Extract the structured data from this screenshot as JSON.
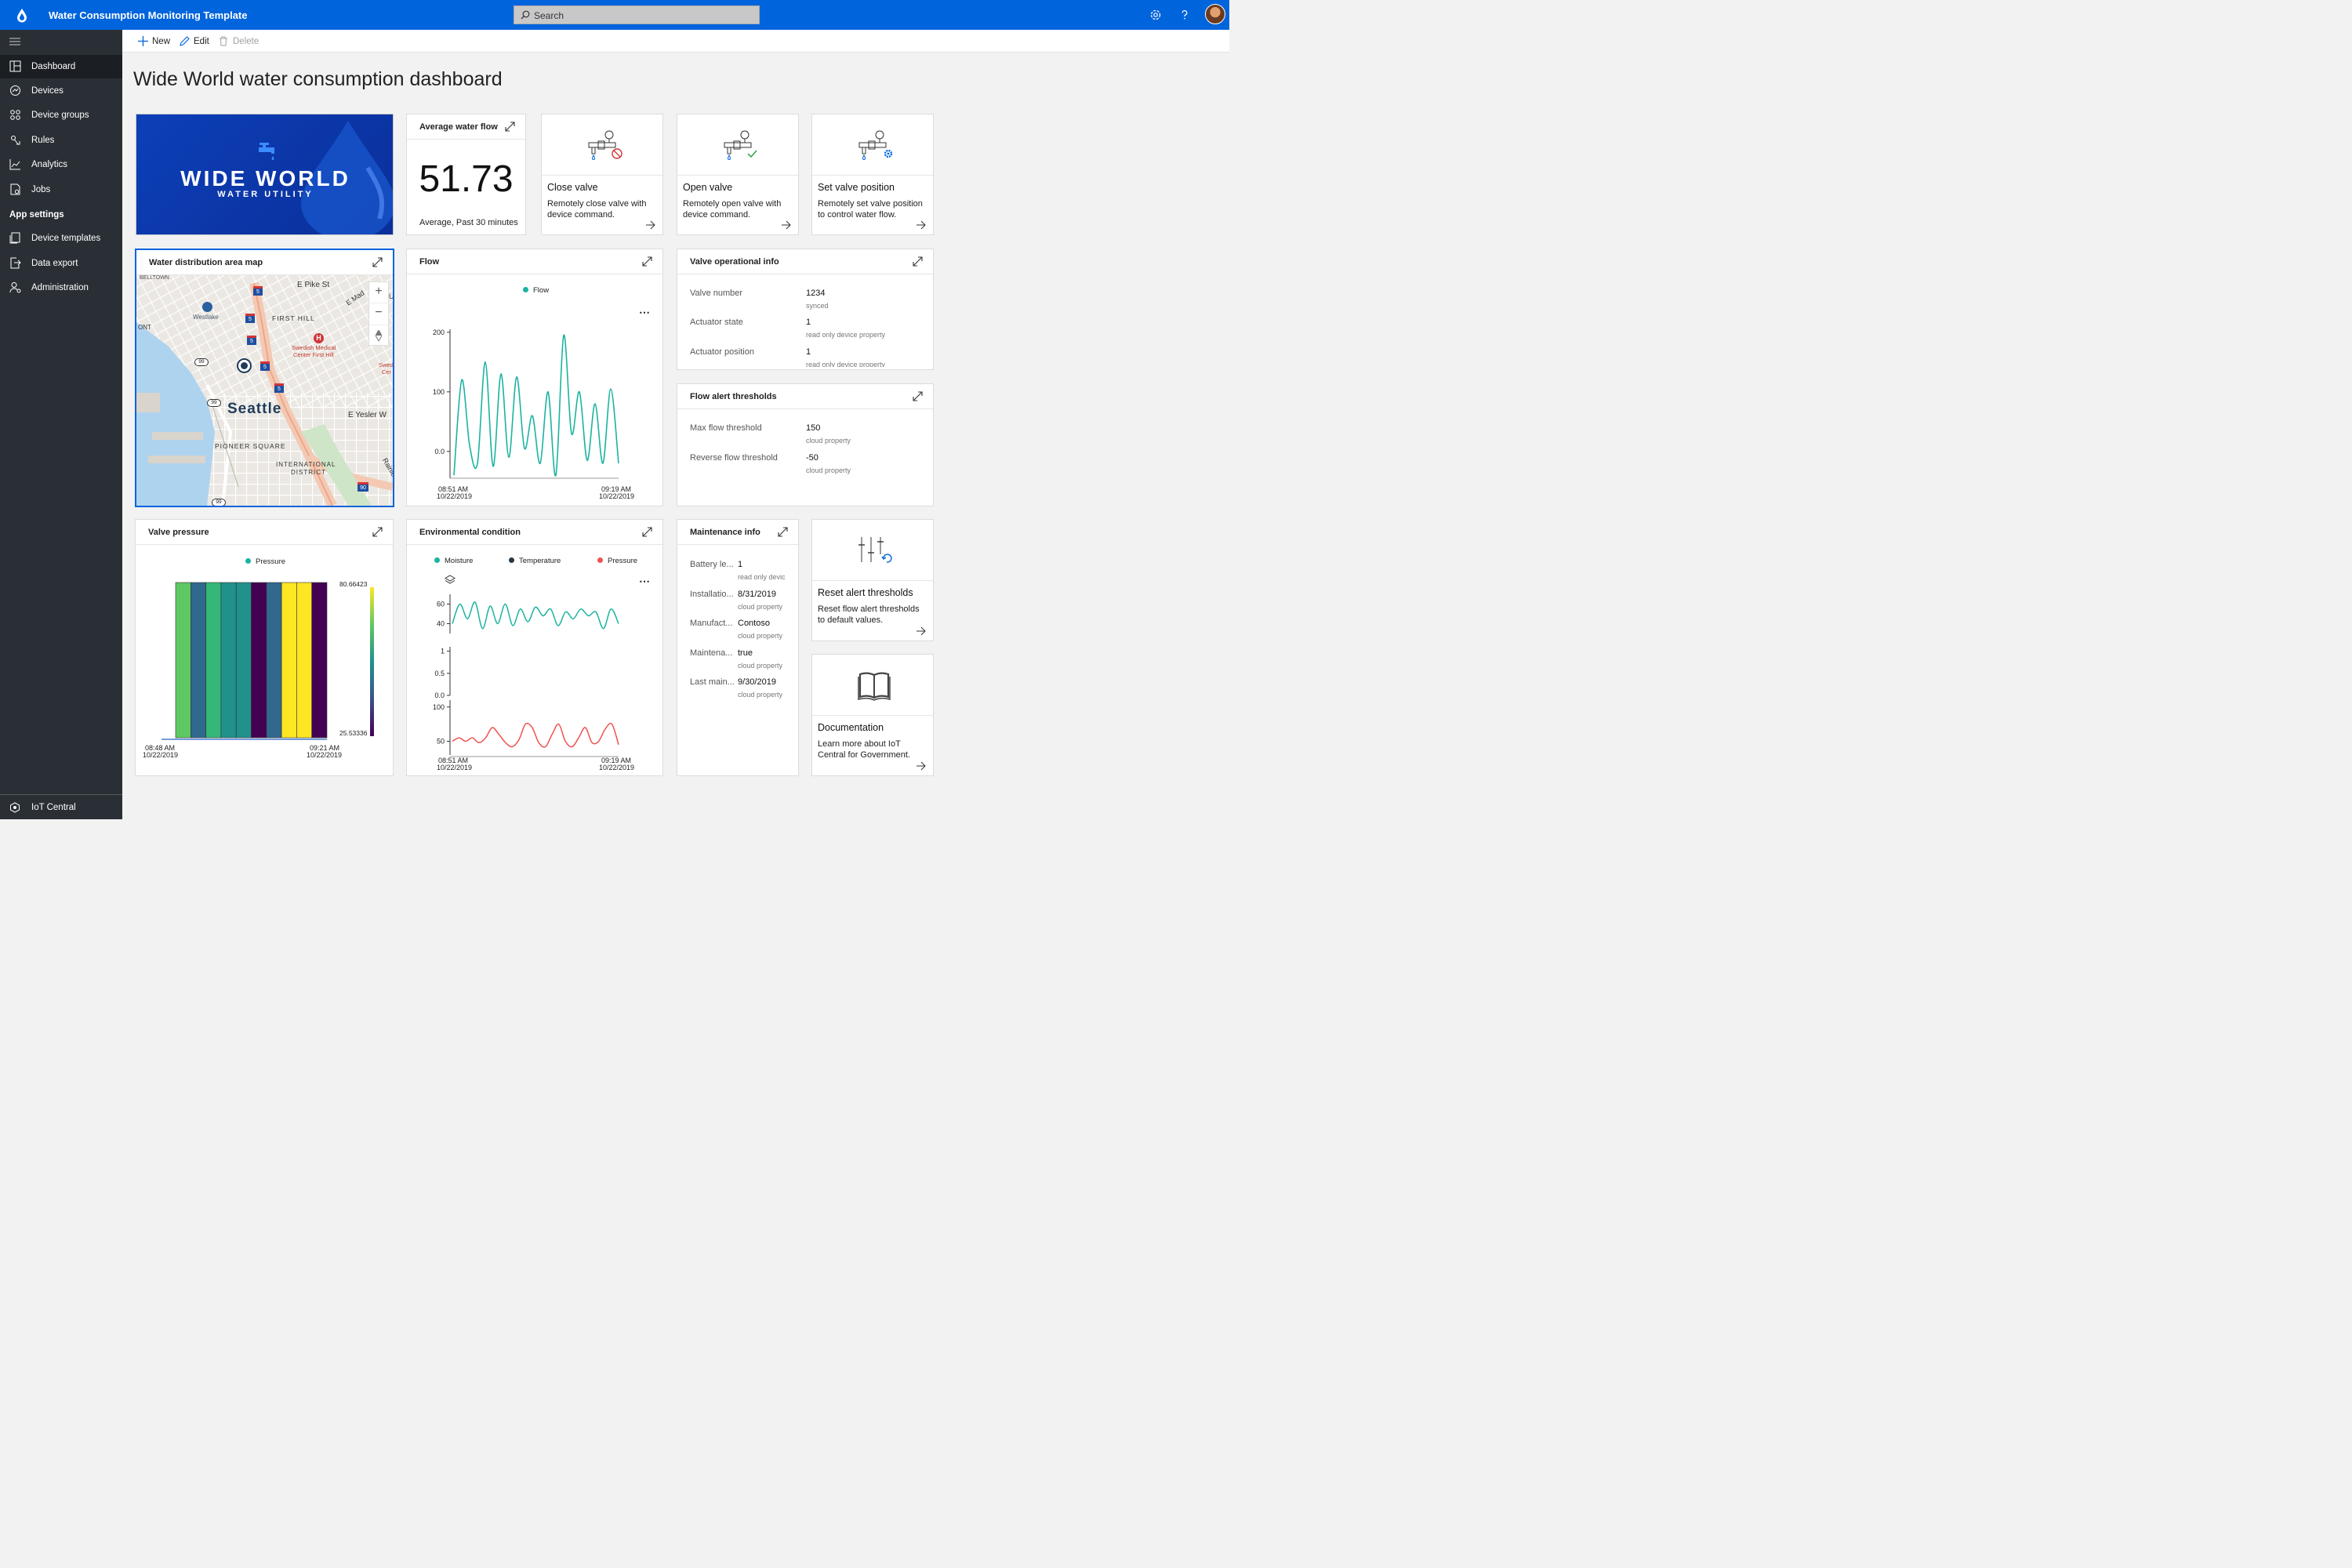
{
  "app": {
    "title": "Water Consumption Monitoring Template",
    "search_placeholder": "Search"
  },
  "sidebar": {
    "items": [
      {
        "label": "Dashboard",
        "icon": "dashboard-icon",
        "active": true
      },
      {
        "label": "Devices",
        "icon": "devices-icon"
      },
      {
        "label": "Device groups",
        "icon": "device-groups-icon"
      },
      {
        "label": "Rules",
        "icon": "rules-icon"
      },
      {
        "label": "Analytics",
        "icon": "analytics-icon"
      },
      {
        "label": "Jobs",
        "icon": "jobs-icon"
      }
    ],
    "section": "App settings",
    "settings_items": [
      {
        "label": "Device templates",
        "icon": "device-templates-icon"
      },
      {
        "label": "Data export",
        "icon": "data-export-icon"
      },
      {
        "label": "Administration",
        "icon": "administration-icon"
      }
    ],
    "footer": "IoT Central"
  },
  "toolbar": {
    "new_label": "New",
    "edit_label": "Edit",
    "delete_label": "Delete"
  },
  "page": {
    "title": "Wide World water consumption dashboard"
  },
  "brand": {
    "line1": "WIDE WORLD",
    "line2": "WATER UTILITY"
  },
  "kpi": {
    "title": "Average water flow",
    "value": "51.73",
    "subtitle": "Average, Past 30 minutes"
  },
  "actions": [
    {
      "title": "Close valve",
      "desc": "Remotely close valve with device command."
    },
    {
      "title": "Open valve",
      "desc": "Remotely open valve with device command."
    },
    {
      "title": "Set valve position",
      "desc": "Remotely set valve position to control water flow."
    },
    {
      "title": "Reset alert thresholds",
      "desc": "Reset flow alert thresholds to default values."
    },
    {
      "title": "Documentation",
      "desc": "Learn more about IoT Central for Government."
    }
  ],
  "map": {
    "title": "Water distribution area map",
    "labels": {
      "city": "Seattle",
      "pike": "E Pike St",
      "madison": "E Mad",
      "westlake": "Westlake",
      "first_hill": "FIRST HILL",
      "hospital1": "Swedish Medical",
      "hospital2": "Center First Hill",
      "swed": "Swed",
      "cer": "Cer",
      "yesler": "E Yesler W",
      "pioneer": "PIONEER SQUARE",
      "intl1": "INTERNATIONAL",
      "intl2": "DISTRICT",
      "rainier": "Rainie",
      "belltown": "BELLTOWN",
      "ont": "ONT",
      "u": "U"
    },
    "shields": {
      "i5": "5",
      "sr99": "99",
      "i90": "90"
    }
  },
  "flow_chart": {
    "title": "Flow",
    "chart_data": {
      "type": "line",
      "series": [
        {
          "name": "Flow",
          "color": "#1bb3a1",
          "values": [
            -40,
            120,
            10,
            -20,
            150,
            -25,
            130,
            -10,
            125,
            5,
            60,
            -20,
            100,
            -40,
            195,
            30,
            100,
            -15,
            80,
            -20,
            105,
            -20
          ]
        }
      ],
      "x_labels": [
        {
          "time": "08:51 AM",
          "date": "10/22/2019"
        },
        {
          "time": "09:19 AM",
          "date": "10/22/2019"
        }
      ],
      "yticks": [
        "200",
        "100",
        "0.0"
      ],
      "ylim": [
        -45,
        205
      ]
    }
  },
  "valve_info": {
    "title": "Valve operational info",
    "rows": [
      {
        "label": "Valve number",
        "value": "1234",
        "sub": "synced"
      },
      {
        "label": "Actuator state",
        "value": "1",
        "sub": "read only device property"
      },
      {
        "label": "Actuator position",
        "value": "1",
        "sub": "read only device property"
      }
    ]
  },
  "thresholds": {
    "title": "Flow alert thresholds",
    "rows": [
      {
        "label": "Max flow threshold",
        "value": "150",
        "sub": "cloud property"
      },
      {
        "label": "Reverse flow threshold",
        "value": "-50",
        "sub": "cloud property"
      }
    ]
  },
  "pressure_chart": {
    "title": "Valve pressure",
    "chart_data": {
      "type": "heatmap",
      "series": [
        {
          "name": "Pressure",
          "color": "#1bb3a1"
        }
      ],
      "colors": [
        "#5ec962",
        "#31688e",
        "#35b779",
        "#21918c",
        "#21918c",
        "#440154",
        "#31688e",
        "#fde725",
        "#fde725",
        "#440154"
      ],
      "scale_max": "80.66423",
      "scale_min": "25.53336",
      "x_labels": [
        {
          "time": "08:48 AM",
          "date": "10/22/2019"
        },
        {
          "time": "09:21 AM",
          "date": "10/22/2019"
        }
      ]
    }
  },
  "env_chart": {
    "title": "Environmental condition",
    "chart_data": {
      "type": "line",
      "legend": [
        {
          "name": "Moisture",
          "color": "#1bb3a1"
        },
        {
          "name": "Temperature",
          "color": "#263746"
        },
        {
          "name": "Pressure",
          "color": "#ef5350"
        }
      ],
      "panels": [
        {
          "yticks": [
            "60",
            "40"
          ],
          "ylim": [
            30,
            70
          ],
          "color": "#1bb3a1",
          "values": [
            40,
            60,
            45,
            62,
            35,
            58,
            40,
            60,
            38,
            55,
            42,
            57,
            48,
            55,
            38,
            52,
            45,
            55,
            48,
            52,
            35,
            55,
            40
          ]
        },
        {
          "yticks": [
            "1",
            "0.5",
            "0.0"
          ],
          "ylim": [
            0,
            1.1
          ],
          "color": "#263746",
          "values": []
        },
        {
          "yticks": [
            "100",
            "50"
          ],
          "ylim": [
            30,
            110
          ],
          "color": "#ef5350",
          "values": [
            50,
            55,
            50,
            55,
            48,
            55,
            70,
            60,
            48,
            42,
            52,
            75,
            70,
            48,
            42,
            60,
            75,
            50,
            42,
            55,
            70,
            48,
            50,
            68,
            75,
            45
          ]
        }
      ],
      "x_labels": [
        {
          "time": "08:51 AM",
          "date": "10/22/2019"
        },
        {
          "time": "09:19 AM",
          "date": "10/22/2019"
        }
      ]
    }
  },
  "maintenance": {
    "title": "Maintenance info",
    "rows": [
      {
        "label": "Battery le...",
        "value": "1",
        "sub": "read only devic"
      },
      {
        "label": "Installatio...",
        "value": "8/31/2019",
        "sub": "cloud property"
      },
      {
        "label": "Manufact...",
        "value": "Contoso",
        "sub": "cloud property"
      },
      {
        "label": "Maintena...",
        "value": "true",
        "sub": "cloud property"
      },
      {
        "label": "Last main...",
        "value": "9/30/2019",
        "sub": "cloud property"
      }
    ]
  }
}
